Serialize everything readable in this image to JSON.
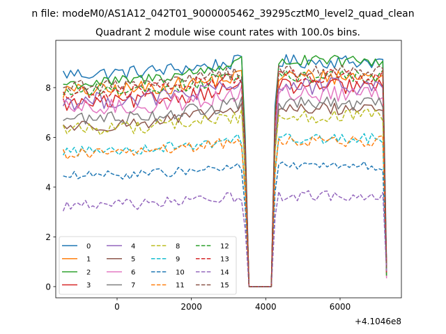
{
  "figure": {
    "suptitle": "n file: modeM0/AS1A12_042T01_9000005462_39295cztM0_level2_quad_clean"
  },
  "chart_data": {
    "type": "line",
    "title": "Quadrant 2 module wise count rates with 100.0s bins.",
    "xlabel": "",
    "ylabel": "",
    "x_offset_label": "+4.1046e8",
    "xlim": [
      -1650,
      7650
    ],
    "ylim": [
      -0.45,
      9.9
    ],
    "xticks": [
      0,
      2000,
      4000,
      6000
    ],
    "yticks": [
      0,
      2,
      4,
      6,
      8
    ],
    "grid": false,
    "legend": {
      "location": "lower-left",
      "columns": 4
    },
    "x": {
      "start": -1450,
      "step": 100,
      "count": 88
    },
    "gap": {
      "from_index": 50,
      "to_index": 56,
      "value": 0
    },
    "ramp_down_index": 49,
    "ramp_up_index": 57,
    "series": [
      {
        "name": "0",
        "color": "#1f77b4",
        "dash": "solid",
        "level": 8.55,
        "amplitude": 0.28,
        "trend": 0.5
      },
      {
        "name": "1",
        "color": "#ff7f0e",
        "dash": "solid",
        "level": 7.85,
        "amplitude": 0.32,
        "trend": 0.6
      },
      {
        "name": "2",
        "color": "#2ca02c",
        "dash": "solid",
        "level": 8.15,
        "amplitude": 0.25,
        "trend": 0.9
      },
      {
        "name": "3",
        "color": "#d62728",
        "dash": "solid",
        "level": 7.35,
        "amplitude": 0.3,
        "trend": 0.7
      },
      {
        "name": "4",
        "color": "#9467bd",
        "dash": "solid",
        "level": 7.45,
        "amplitude": 0.35,
        "trend": 0.6
      },
      {
        "name": "5",
        "color": "#8c564b",
        "dash": "solid",
        "level": 6.45,
        "amplitude": 0.25,
        "trend": 0.7
      },
      {
        "name": "6",
        "color": "#e377c2",
        "dash": "solid",
        "level": 7.15,
        "amplitude": 0.35,
        "trend": 0.6
      },
      {
        "name": "7",
        "color": "#7f7f7f",
        "dash": "solid",
        "level": 6.75,
        "amplitude": 0.28,
        "trend": 0.6
      },
      {
        "name": "8",
        "color": "#bcbd22",
        "dash": "dashed",
        "level": 6.35,
        "amplitude": 0.28,
        "trend": 0.5
      },
      {
        "name": "9",
        "color": "#17becf",
        "dash": "dashed",
        "level": 5.45,
        "amplitude": 0.22,
        "trend": 0.5
      },
      {
        "name": "10",
        "color": "#1f77b4",
        "dash": "dashed",
        "level": 4.45,
        "amplitude": 0.18,
        "trend": 0.4
      },
      {
        "name": "11",
        "color": "#ff7f0e",
        "dash": "dashed",
        "level": 5.35,
        "amplitude": 0.22,
        "trend": 0.5
      },
      {
        "name": "12",
        "color": "#2ca02c",
        "dash": "dashed",
        "level": 7.85,
        "amplitude": 0.28,
        "trend": 0.6
      },
      {
        "name": "13",
        "color": "#d62728",
        "dash": "dashed",
        "level": 7.75,
        "amplitude": 0.3,
        "trend": 0.7
      },
      {
        "name": "14",
        "color": "#9467bd",
        "dash": "dashed",
        "level": 3.25,
        "amplitude": 0.22,
        "trend": 0.4
      },
      {
        "name": "15",
        "color": "#8c564b",
        "dash": "dashed",
        "level": 8.05,
        "amplitude": 0.25,
        "trend": 0.6
      }
    ]
  }
}
